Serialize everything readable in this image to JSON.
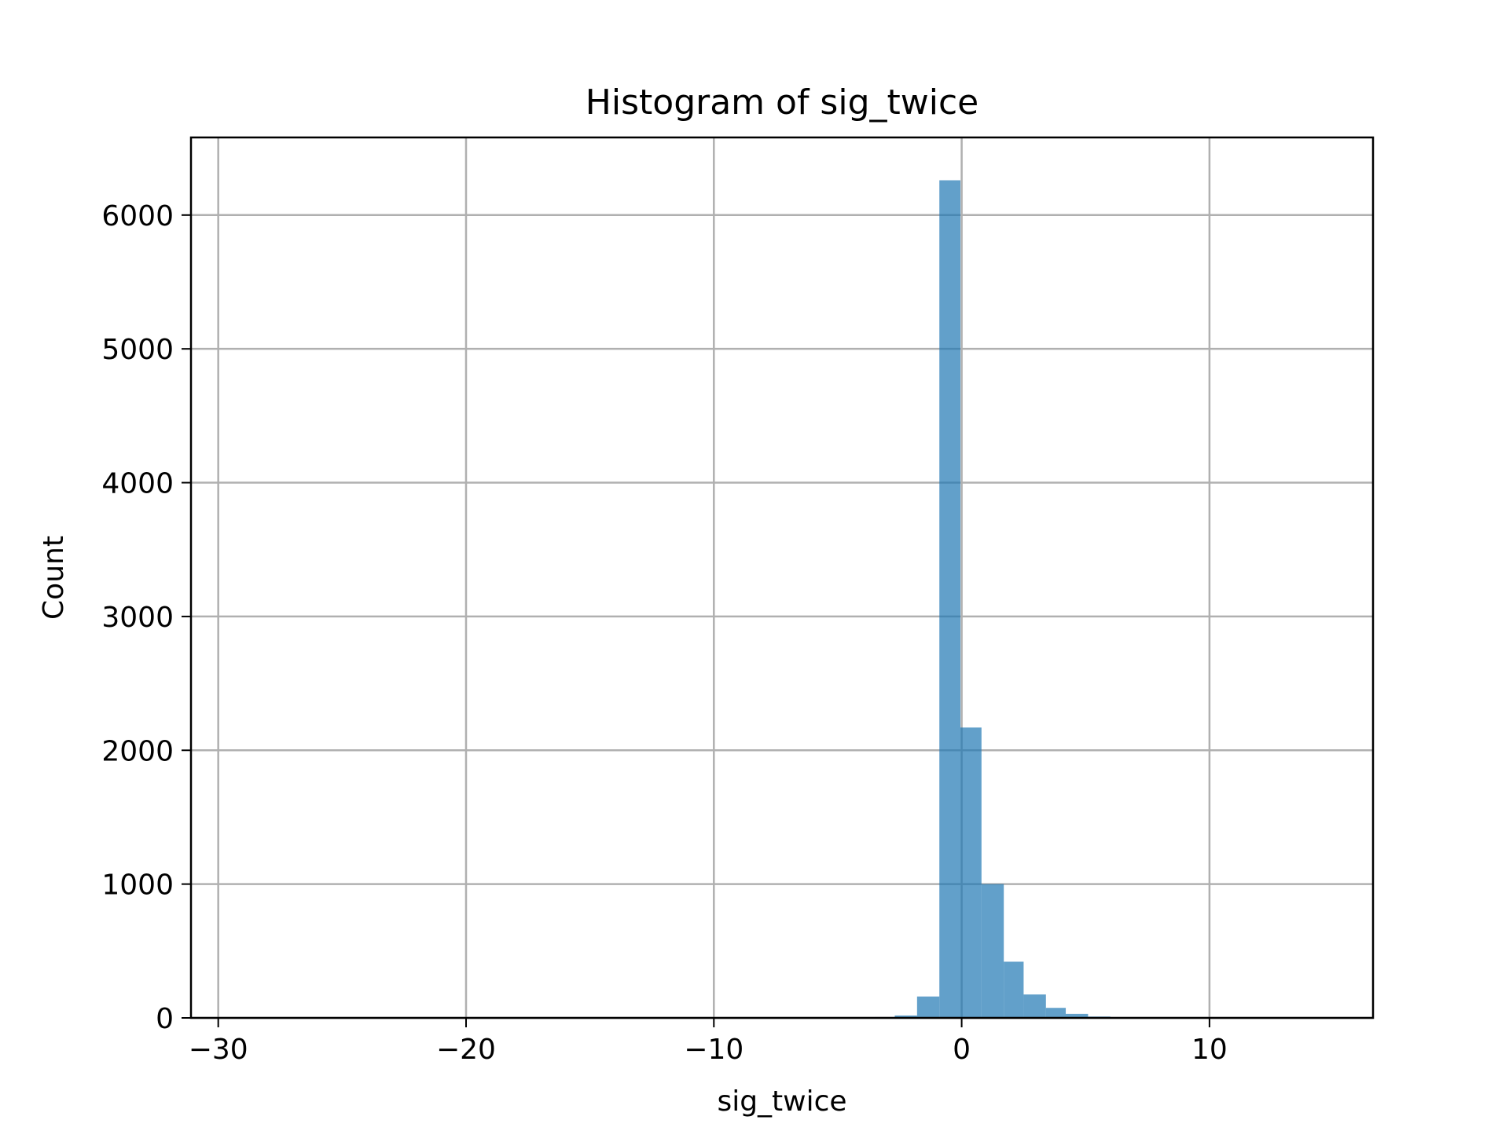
{
  "chart_data": {
    "type": "bar",
    "title": "Histogram of sig_twice",
    "xlabel": "sig_twice",
    "ylabel": "Count",
    "xlim": [
      -31.1,
      16.6
    ],
    "ylim": [
      0,
      6580
    ],
    "xticks": [
      -30,
      -20,
      -10,
      0,
      10
    ],
    "xtick_labels": [
      "−30",
      "−20",
      "−10",
      "0",
      "10"
    ],
    "yticks": [
      0,
      1000,
      2000,
      3000,
      4000,
      5000,
      6000
    ],
    "ytick_labels": [
      "0",
      "1000",
      "2000",
      "3000",
      "4000",
      "5000",
      "6000"
    ],
    "grid": true,
    "bar_color": "#1f77b4",
    "bar_opacity": 0.7,
    "bins": [
      {
        "x0": -5.3,
        "x1": -4.4,
        "count": 2
      },
      {
        "x0": -4.4,
        "x1": -3.5,
        "count": 4
      },
      {
        "x0": -3.5,
        "x1": -2.7,
        "count": 6
      },
      {
        "x0": -2.7,
        "x1": -1.8,
        "count": 18
      },
      {
        "x0": -1.8,
        "x1": -0.9,
        "count": 160
      },
      {
        "x0": -0.9,
        "x1": -0.05,
        "count": 6260
      },
      {
        "x0": -0.05,
        "x1": 0.8,
        "count": 2170
      },
      {
        "x0": 0.8,
        "x1": 1.7,
        "count": 1000
      },
      {
        "x0": 1.7,
        "x1": 2.5,
        "count": 420
      },
      {
        "x0": 2.5,
        "x1": 3.4,
        "count": 175
      },
      {
        "x0": 3.4,
        "x1": 4.2,
        "count": 75
      },
      {
        "x0": 4.2,
        "x1": 5.1,
        "count": 30
      },
      {
        "x0": 5.1,
        "x1": 6.0,
        "count": 10
      },
      {
        "x0": 6.0,
        "x1": 6.8,
        "count": 5
      }
    ]
  }
}
